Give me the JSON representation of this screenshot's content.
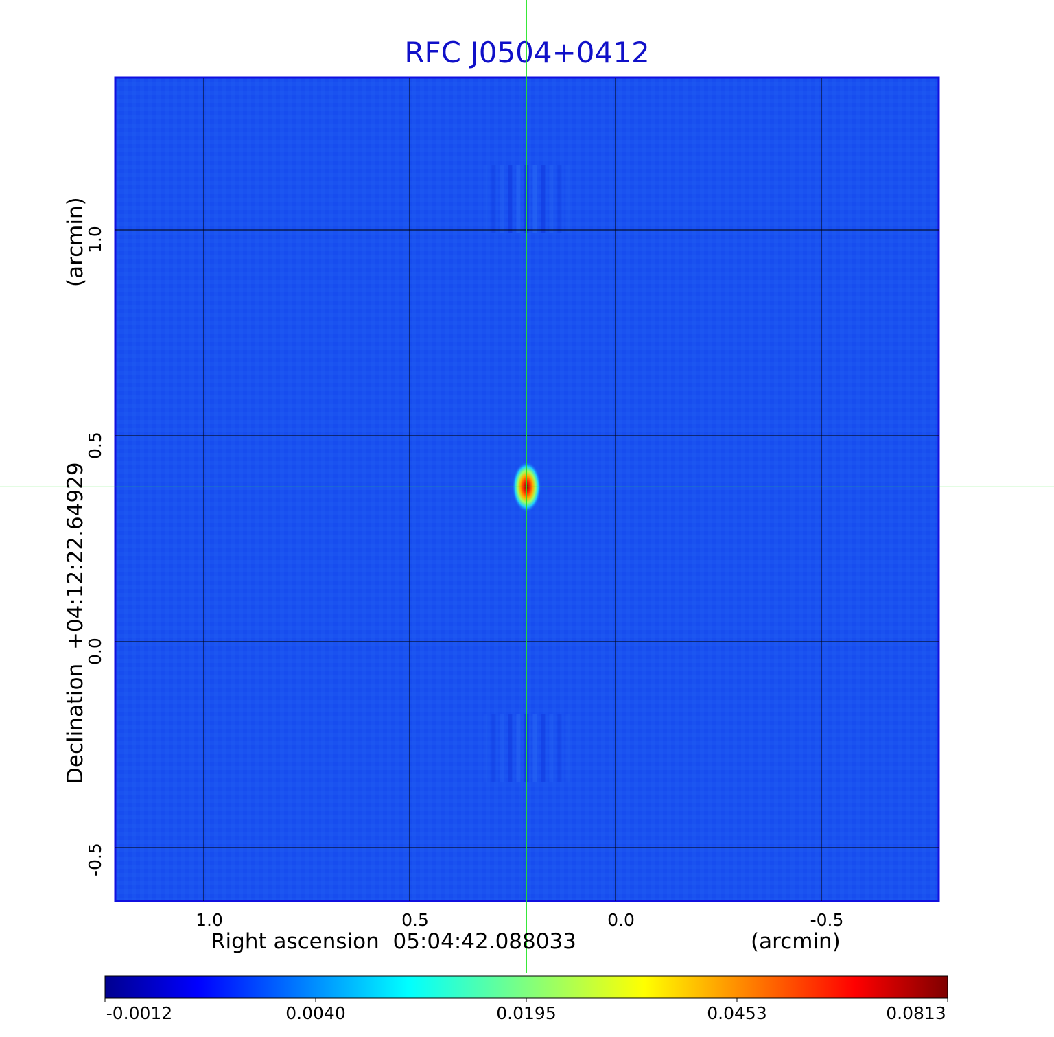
{
  "chart_data": {
    "type": "heatmap",
    "title": "RFC J0504+0412",
    "xlabel": "Right ascension  05:04:42.088033",
    "xunit": "(arcmin)",
    "ylabel": "Declination  +04:12:22.64929",
    "yunit": "(arcmin)",
    "x_ticks": [
      "1.0",
      "0.5",
      "0.0",
      "-0.5"
    ],
    "x_tick_values": [
      1.0,
      0.5,
      0.0,
      -0.5
    ],
    "y_ticks": [
      "1.0",
      "0.5",
      "0.0",
      "-0.5"
    ],
    "y_tick_values": [
      1.0,
      0.5,
      0.0,
      -0.5
    ],
    "xlim": [
      1.215,
      -0.785
    ],
    "ylim": [
      -0.63,
      1.37
    ],
    "grid": true,
    "source_peak": {
      "x": 0.216,
      "y": 0.376,
      "value": 0.0813
    },
    "crosshair": {
      "x": 0.216,
      "y": 0.376
    },
    "colormap": "jet",
    "colorbar": {
      "ticks": [
        "-0.0012",
        "0.0040",
        "0.0195",
        "0.0453",
        "0.0813"
      ],
      "tick_values": [
        -0.0012,
        0.004,
        0.0195,
        0.0453,
        0.0813
      ]
    },
    "colors": {
      "background_field": "#1a52f0",
      "title": "#1010c8",
      "crosshair": "#22e622",
      "frame": "#1010e0"
    }
  }
}
